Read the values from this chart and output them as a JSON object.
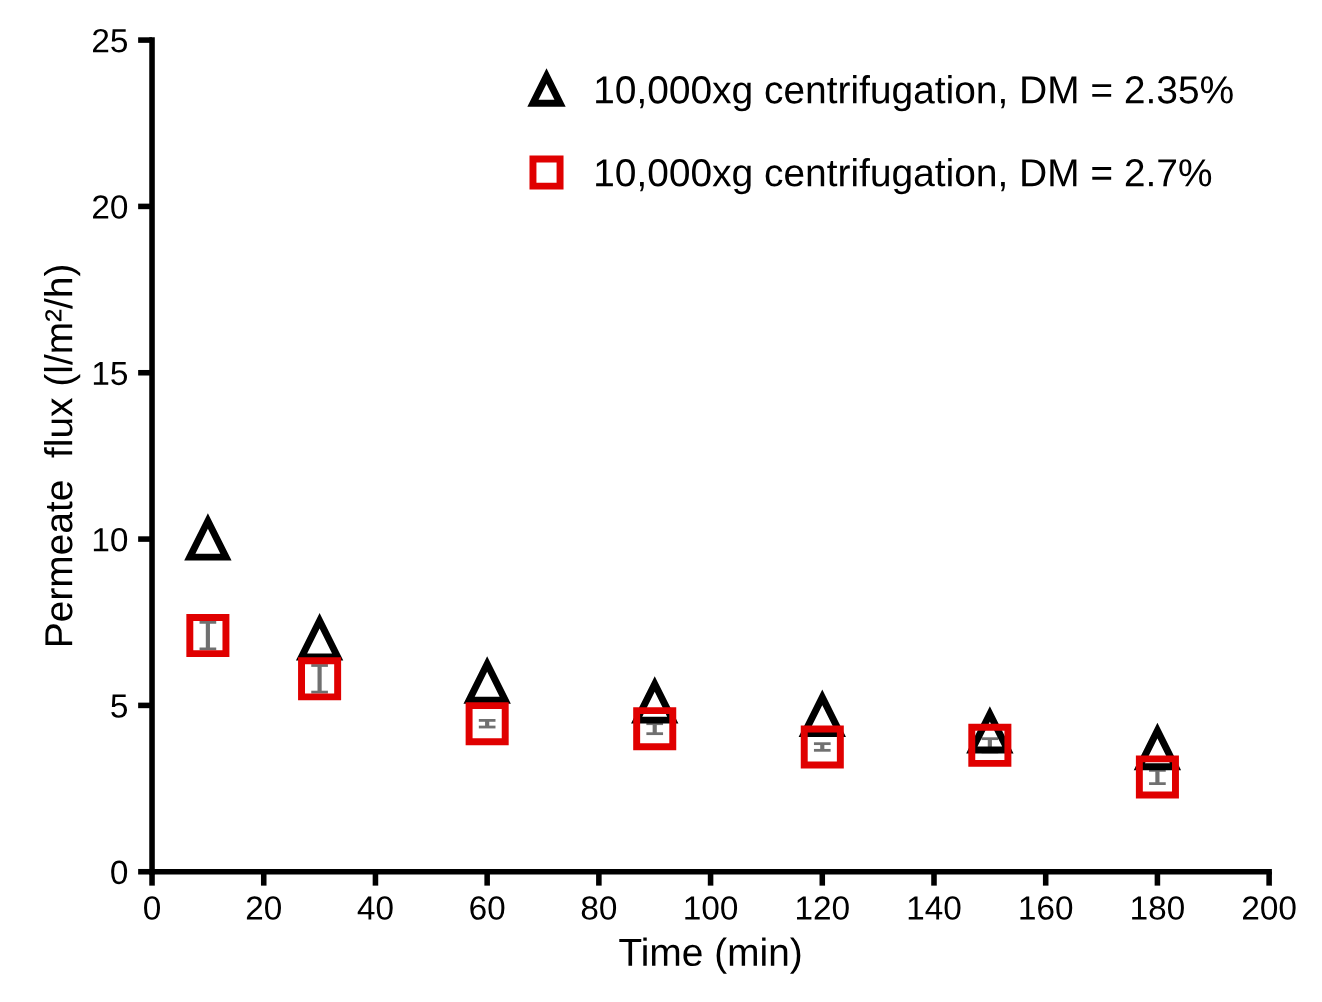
{
  "chart_data": {
    "type": "scatter",
    "xlabel": "Time (min)",
    "ylabel": "Permeate  flux (l/m²/h)",
    "x": [
      10,
      30,
      60,
      90,
      120,
      150,
      180
    ],
    "series": [
      {
        "name": "10,000xg centrifugation, DM = 2.35%",
        "color": "#000000",
        "marker": "triangle",
        "values": [
          10.0,
          7.0,
          5.7,
          5.1,
          4.7,
          4.2,
          3.7
        ]
      },
      {
        "name": "10,000xg centrifugation, DM = 2.7%",
        "color": "#e00000",
        "marker": "square",
        "values": [
          7.1,
          5.8,
          4.45,
          4.3,
          3.75,
          3.8,
          2.85
        ],
        "errors": [
          0.4,
          0.4,
          0.1,
          0.15,
          0.1,
          0.2,
          0.2
        ]
      }
    ],
    "xlim": [
      0,
      200
    ],
    "xticks": [
      0,
      20,
      40,
      60,
      80,
      100,
      120,
      140,
      160,
      180,
      200
    ],
    "ylim": [
      0,
      25
    ],
    "yticks": [
      0,
      5,
      10,
      15,
      20,
      25
    ],
    "grid": false,
    "legend": "top right"
  }
}
